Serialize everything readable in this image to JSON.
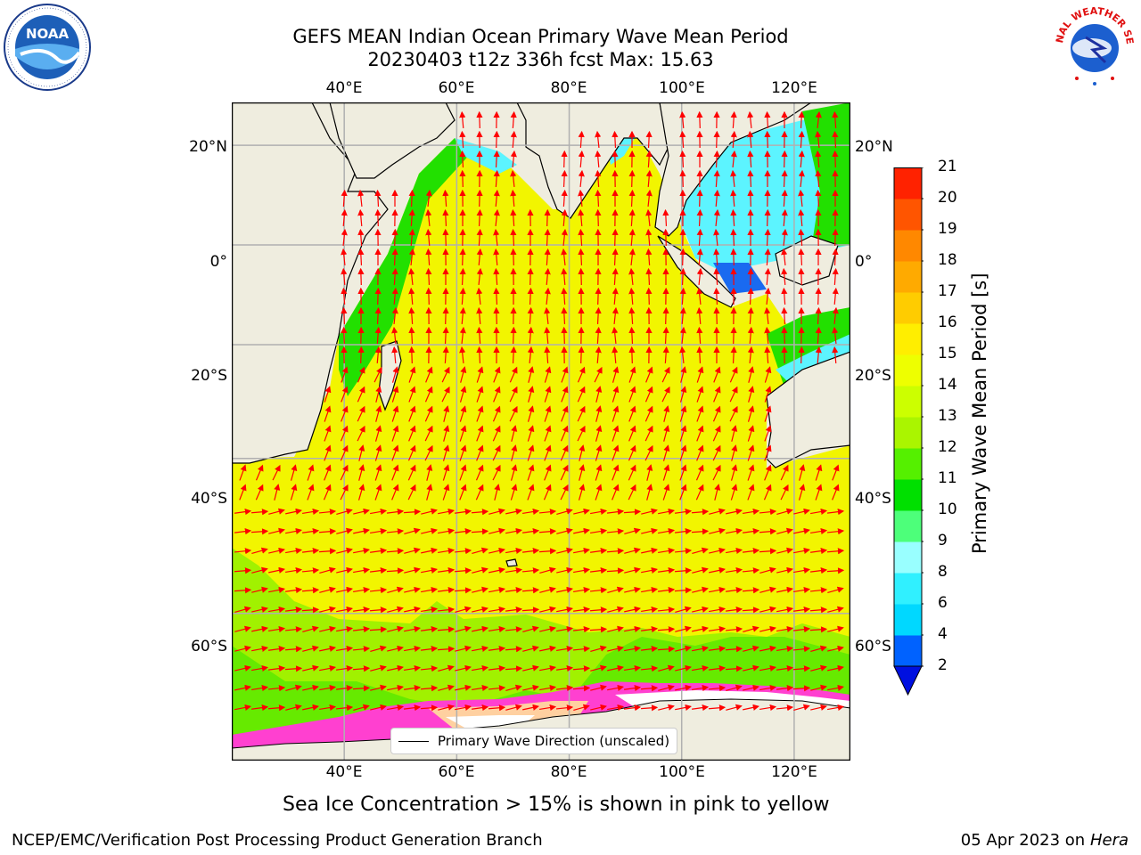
{
  "header": {
    "title_line1": "GEFS MEAN Indian Ocean Primary Wave Mean Period",
    "title_line2": "20230403 t12z 336h fcst   Max: 15.63"
  },
  "logos": {
    "left": "NOAA",
    "right": "NATIONAL WEATHER SERVICE"
  },
  "map": {
    "lon_labels": [
      "40°E",
      "60°E",
      "80°E",
      "100°E",
      "120°E"
    ],
    "lat_labels": [
      "20°N",
      "0°",
      "20°S",
      "40°S",
      "60°S"
    ],
    "lon_values": [
      40,
      60,
      80,
      100,
      120
    ],
    "lat_values": [
      20,
      0,
      -20,
      -40,
      -60
    ],
    "extent": {
      "lon": [
        20,
        130
      ],
      "lat": [
        -72,
        28
      ]
    },
    "grid": true,
    "arrow_color": "#ff0000",
    "legend_label": "Primary Wave Direction (unscaled)"
  },
  "colorbar": {
    "title": "Primary Wave Mean Period [s]",
    "tick_labels": [
      "2",
      "4",
      "6",
      "8",
      "9",
      "10",
      "11",
      "12",
      "13",
      "14",
      "15",
      "16",
      "17",
      "18",
      "19",
      "20",
      "21"
    ],
    "colors": [
      "#0062ff",
      "#00d8ff",
      "#30f0ff",
      "#99ffff",
      "#4dff7a",
      "#00e000",
      "#55f000",
      "#aaf500",
      "#ccff00",
      "#eeff00",
      "#ffee00",
      "#ffcc00",
      "#ffaa00",
      "#ff8800",
      "#ff5500",
      "#ff2200"
    ],
    "under_color": "#0010e0"
  },
  "caption": "Sea Ice Concentration > 15% is shown in pink to yellow",
  "footer": {
    "left": "NCEP/EMC/Verification Post Processing Product Generation Branch",
    "right_date": "05 Apr 2023 on ",
    "right_host": "Hera"
  }
}
